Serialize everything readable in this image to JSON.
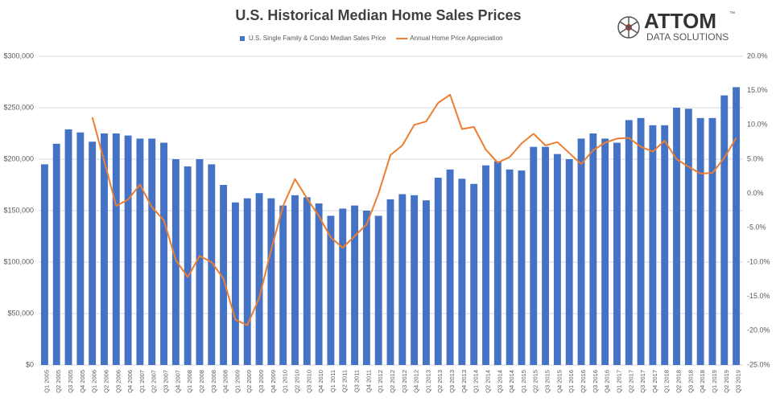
{
  "chart_data": {
    "type": "bar_line",
    "title": "U.S. Historical Median Home Sales Prices",
    "logo": {
      "name": "ATTOM",
      "tagline": "DATA SOLUTIONS",
      "mark": "™"
    },
    "categories": [
      "Q1 2005",
      "Q2 2005",
      "Q3 2005",
      "Q4 2005",
      "Q1 2006",
      "Q2 2006",
      "Q3 2006",
      "Q4 2006",
      "Q1 2007",
      "Q2 2007",
      "Q3 2007",
      "Q4 2007",
      "Q1 2008",
      "Q2 2008",
      "Q3 2008",
      "Q4 2008",
      "Q1 2009",
      "Q2 2009",
      "Q3 2009",
      "Q4 2009",
      "Q1 2010",
      "Q2 2010",
      "Q3 2010",
      "Q4 2010",
      "Q1 2011",
      "Q2 2011",
      "Q3 2011",
      "Q4 2011",
      "Q1 2012",
      "Q2 2012",
      "Q3 2012",
      "Q4 2012",
      "Q1 2013",
      "Q2 2013",
      "Q3 2013",
      "Q4 2013",
      "Q1 2014",
      "Q2 2014",
      "Q3 2014",
      "Q4 2014",
      "Q1 2015",
      "Q2 2015",
      "Q3 2015",
      "Q4 2015",
      "Q1 2016",
      "Q2 2016",
      "Q3 2016",
      "Q4 2016",
      "Q1 2017",
      "Q2 2017",
      "Q3 2017",
      "Q4 2017",
      "Q1 2018",
      "Q2 2018",
      "Q3 2018",
      "Q4 2018",
      "Q1 2019",
      "Q2 2019",
      "Q3 2019"
    ],
    "series": [
      {
        "name": "U.S. Single Family & Condo Median Sales Price",
        "type": "bar",
        "color": "#4472c4",
        "values": [
          195000,
          215000,
          229000,
          226000,
          217000,
          225000,
          225000,
          223000,
          220000,
          220000,
          216000,
          200000,
          193000,
          200000,
          195000,
          175000,
          158000,
          162000,
          167000,
          162000,
          155000,
          165000,
          163000,
          157000,
          145000,
          152000,
          155000,
          150000,
          145000,
          161000,
          166000,
          165000,
          160000,
          182000,
          190000,
          181000,
          176000,
          194000,
          198000,
          190000,
          189000,
          212000,
          212000,
          205000,
          200000,
          220000,
          225000,
          220000,
          216000,
          238000,
          240000,
          233000,
          233000,
          250000,
          249000,
          240000,
          240000,
          262000,
          270000
        ]
      },
      {
        "name": "Annual Home Price Appreciation",
        "type": "line",
        "axis": "y2",
        "color": "#ed7d31",
        "values": [
          null,
          null,
          null,
          null,
          11.1,
          4.7,
          -1.8,
          -0.9,
          1.3,
          -2.0,
          -3.9,
          -9.7,
          -12.2,
          -9.1,
          -10.0,
          -12.4,
          -18.4,
          -19.2,
          -15.2,
          -8.2,
          -1.8,
          2.1,
          -0.7,
          -3.3,
          -6.4,
          -7.9,
          -6.2,
          -4.5,
          0,
          5.6,
          7.0,
          10.0,
          10.5,
          13.2,
          14.4,
          9.4,
          9.7,
          6.4,
          4.5,
          5.3,
          7.3,
          8.7,
          7.0,
          7.5,
          5.9,
          4.3,
          6.3,
          7.4,
          8.0,
          8.1,
          6.8,
          6.1,
          7.7,
          5.0,
          3.9,
          2.9,
          3.0,
          5.2,
          8.1
        ]
      }
    ],
    "ylim": [
      0,
      300000
    ],
    "yticks": [
      {
        "value": 0,
        "label": "$0"
      },
      {
        "value": 50000,
        "label": "$50,000"
      },
      {
        "value": 100000,
        "label": "$100,000"
      },
      {
        "value": 150000,
        "label": "$150,000"
      },
      {
        "value": 200000,
        "label": "$200,000"
      },
      {
        "value": 250000,
        "label": "$250,000"
      },
      {
        "value": 300000,
        "label": "$300,000"
      }
    ],
    "y2lim": [
      -25,
      20
    ],
    "y2ticks": [
      {
        "value": -25,
        "label": "-25.0%"
      },
      {
        "value": -20,
        "label": "-20.0%"
      },
      {
        "value": -15,
        "label": "-15.0%"
      },
      {
        "value": -10,
        "label": "-10.0%"
      },
      {
        "value": -5,
        "label": "-5.0%"
      },
      {
        "value": 0,
        "label": "0.0%"
      },
      {
        "value": 5,
        "label": "5.0%"
      },
      {
        "value": 10,
        "label": "10.0%"
      },
      {
        "value": 15,
        "label": "15.0%"
      },
      {
        "value": 20,
        "label": "20.0%"
      }
    ],
    "grid": true,
    "legend": "top"
  }
}
